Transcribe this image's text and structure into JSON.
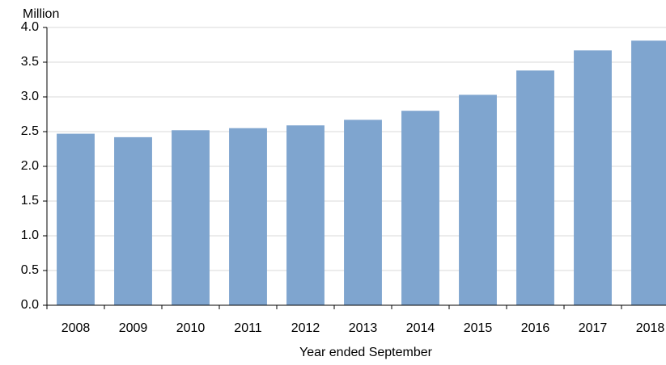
{
  "chart_data": {
    "type": "bar",
    "y_label": "Million",
    "x_label": "Year ended September",
    "categories": [
      "2008",
      "2009",
      "2010",
      "2011",
      "2012",
      "2013",
      "2014",
      "2015",
      "2016",
      "2017",
      "2018"
    ],
    "values": [
      2.47,
      2.42,
      2.52,
      2.55,
      2.59,
      2.67,
      2.8,
      3.03,
      3.38,
      3.67,
      3.81
    ],
    "color": "#7fa5cf",
    "ylim": [
      0,
      4
    ],
    "yticks": [
      {
        "value": 0,
        "label": "0.0"
      },
      0.5,
      {
        "value": 1,
        "label": "1.0"
      },
      1.5,
      {
        "value": 2,
        "label": "2.0"
      },
      2.5,
      {
        "value": 3,
        "label": "3.0"
      },
      3.5,
      {
        "value": 4,
        "label": "4.0"
      }
    ],
    "grid": true
  }
}
